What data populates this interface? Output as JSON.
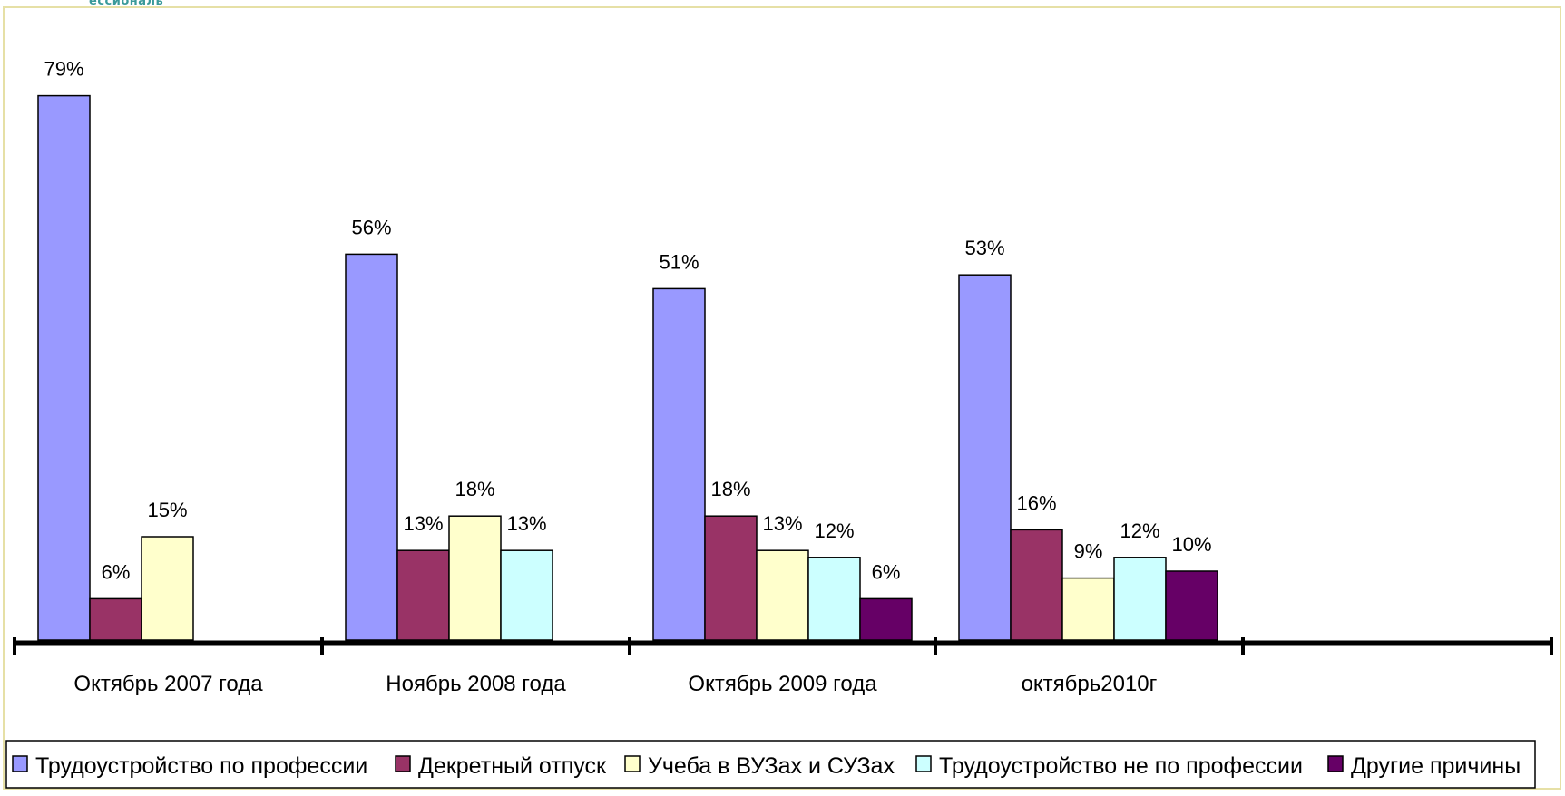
{
  "colors": {
    "page_border": "#e6e0a6",
    "legend_border": "#000000",
    "axis": "#000000"
  },
  "logo_text": "ессиональ",
  "chart_data": {
    "type": "bar",
    "title": "",
    "xlabel": "",
    "ylabel": "",
    "ylim": [
      0,
      80
    ],
    "grid": false,
    "legend_position": "bottom",
    "categories": [
      "Октябрь 2007 года",
      "Ноябрь 2008 года",
      "Октябрь 2009 года",
      "октябрь2010г"
    ],
    "series": [
      {
        "name": "Трудоустройство по профессии",
        "color": "#9999ff",
        "values": [
          79,
          56,
          51,
          53
        ],
        "labels": [
          "79%",
          "56%",
          "51%",
          "53%"
        ]
      },
      {
        "name": "Декретный отпуск",
        "color": "#993366",
        "values": [
          6,
          13,
          18,
          16
        ],
        "labels": [
          "6%",
          "13%",
          "18%",
          "16%"
        ]
      },
      {
        "name": "Учеба в ВУЗах и СУЗах",
        "color": "#ffffcc",
        "values": [
          15,
          18,
          13,
          9
        ],
        "labels": [
          "15%",
          "18%",
          "13%",
          "9%"
        ]
      },
      {
        "name": "Трудоустройство не по профессии",
        "color": "#ccffff",
        "values": [
          null,
          13,
          12,
          12
        ],
        "labels": [
          null,
          "13%",
          "12%",
          "12%"
        ]
      },
      {
        "name": "Другие причины",
        "color": "#660066",
        "values": [
          null,
          null,
          6,
          10
        ],
        "labels": [
          null,
          null,
          "6%",
          "10%"
        ]
      }
    ]
  }
}
